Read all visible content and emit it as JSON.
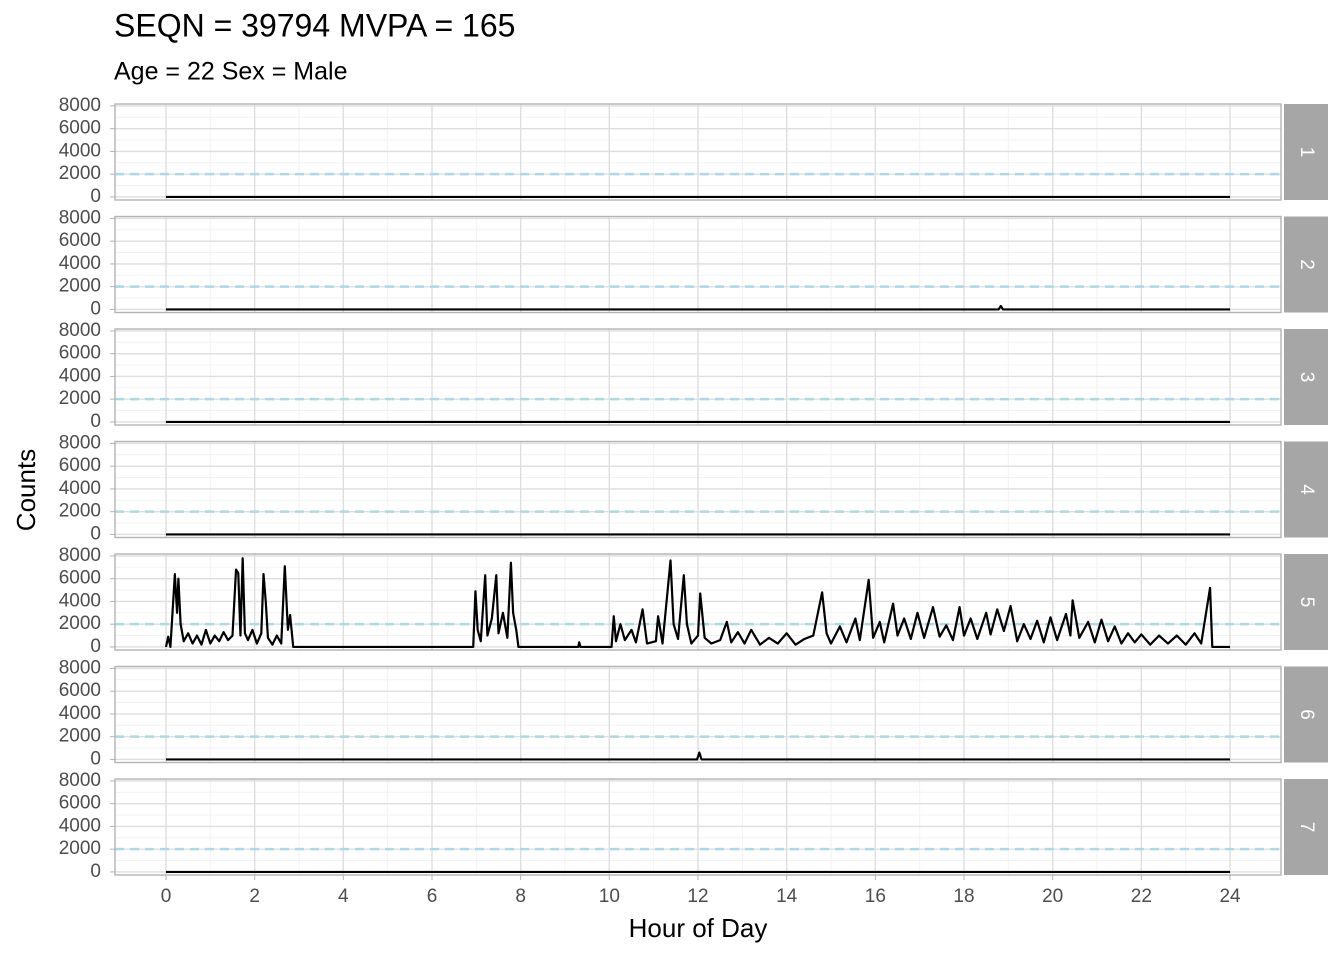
{
  "chart_data": {
    "type": "line",
    "title": "SEQN = 39794 MVPA = 165",
    "subtitle": "Age = 22 Sex = Male",
    "x_label": "Hour of Day",
    "y_label": "Counts",
    "color": "#000000",
    "reference_line": {
      "value": 2000,
      "color": "#add8e6"
    },
    "xlim": [
      -1.15,
      25.15
    ],
    "xticks": [
      0,
      2,
      4,
      6,
      8,
      10,
      12,
      14,
      16,
      18,
      20,
      22,
      24
    ],
    "ylim": [
      -270,
      8170
    ],
    "yticks": [
      0,
      2000,
      4000,
      6000,
      8000
    ],
    "grid": true,
    "facets": [
      {
        "label": "1",
        "x": [
          0,
          24
        ],
        "values": [
          0,
          0
        ]
      },
      {
        "label": "2",
        "x": [
          0,
          18.78,
          18.83,
          18.88,
          24
        ],
        "values": [
          0,
          0,
          300,
          0,
          0
        ]
      },
      {
        "label": "3",
        "x": [
          0,
          24
        ],
        "values": [
          0,
          0
        ]
      },
      {
        "label": "4",
        "x": [
          0,
          24
        ],
        "values": [
          0,
          0
        ]
      },
      {
        "label": "5",
        "x": [
          0,
          0.05,
          0.1,
          0.2,
          0.25,
          0.28,
          0.33,
          0.4,
          0.5,
          0.6,
          0.7,
          0.8,
          0.9,
          1.0,
          1.1,
          1.2,
          1.3,
          1.4,
          1.5,
          1.58,
          1.63,
          1.68,
          1.73,
          1.78,
          1.85,
          1.95,
          2.05,
          2.15,
          2.2,
          2.25,
          2.3,
          2.4,
          2.5,
          2.6,
          2.68,
          2.75,
          2.8,
          2.87,
          6.93,
          6.98,
          7.03,
          7.1,
          7.2,
          7.25,
          7.35,
          7.45,
          7.5,
          7.6,
          7.7,
          7.78,
          7.83,
          7.9,
          7.95,
          9.3,
          9.32,
          9.35,
          10.05,
          10.1,
          10.15,
          10.25,
          10.35,
          10.5,
          10.6,
          10.75,
          10.85,
          11.05,
          11.1,
          11.2,
          11.38,
          11.45,
          11.55,
          11.68,
          11.75,
          11.85,
          12.0,
          12.05,
          12.15,
          12.3,
          12.5,
          12.65,
          12.75,
          12.9,
          13.05,
          13.2,
          13.4,
          13.6,
          13.8,
          14.0,
          14.2,
          14.4,
          14.6,
          14.8,
          14.9,
          15.0,
          15.2,
          15.35,
          15.55,
          15.65,
          15.85,
          15.95,
          16.1,
          16.2,
          16.4,
          16.5,
          16.65,
          16.8,
          16.95,
          17.1,
          17.3,
          17.45,
          17.6,
          17.75,
          17.9,
          18.0,
          18.15,
          18.3,
          18.5,
          18.6,
          18.75,
          18.9,
          19.05,
          19.2,
          19.35,
          19.5,
          19.65,
          19.8,
          19.95,
          20.1,
          20.3,
          20.4,
          20.45,
          20.6,
          20.8,
          20.95,
          21.1,
          21.25,
          21.4,
          21.55,
          21.7,
          21.85,
          22.0,
          22.2,
          22.4,
          22.6,
          22.8,
          23.0,
          23.2,
          23.35,
          23.55,
          23.6,
          24
        ],
        "values": [
          0,
          900,
          0,
          6400,
          3000,
          6000,
          2000,
          500,
          1200,
          300,
          1000,
          200,
          1500,
          300,
          1000,
          500,
          1300,
          600,
          1000,
          6800,
          6500,
          1000,
          7800,
          1200,
          600,
          1500,
          300,
          1200,
          6400,
          4000,
          800,
          200,
          1000,
          300,
          7100,
          1500,
          2800,
          0,
          0,
          4900,
          1500,
          500,
          6300,
          1000,
          2500,
          6300,
          1200,
          3000,
          800,
          7400,
          3000,
          1500,
          0,
          0,
          400,
          0,
          0,
          2700,
          500,
          2000,
          600,
          1500,
          400,
          3300,
          300,
          500,
          2700,
          300,
          7600,
          2000,
          700,
          6300,
          2000,
          300,
          1000,
          4700,
          800,
          300,
          600,
          2200,
          400,
          1300,
          300,
          1500,
          200,
          800,
          300,
          1200,
          200,
          700,
          1000,
          4800,
          1200,
          300,
          1800,
          400,
          2500,
          600,
          5900,
          800,
          2200,
          400,
          3800,
          1000,
          2500,
          700,
          3000,
          800,
          3500,
          900,
          1900,
          600,
          3500,
          1000,
          2500,
          700,
          3000,
          1100,
          3300,
          1400,
          3600,
          500,
          2000,
          700,
          2300,
          400,
          2600,
          600,
          2900,
          1000,
          4100,
          800,
          2200,
          400,
          2400,
          500,
          1800,
          300,
          1200,
          400,
          1100,
          200,
          1000,
          300,
          1000,
          200,
          1200,
          300,
          5200,
          0,
          0
        ]
      },
      {
        "label": "6",
        "x": [
          0,
          11.98,
          12.03,
          12.08,
          24
        ],
        "values": [
          0,
          0,
          600,
          0,
          0
        ]
      },
      {
        "label": "7",
        "x": [
          0,
          24
        ],
        "values": [
          0,
          0
        ]
      }
    ]
  }
}
